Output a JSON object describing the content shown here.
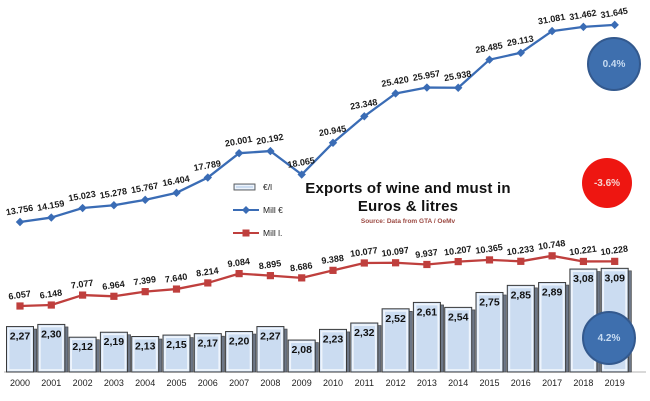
{
  "title": {
    "line1": "Exports of wine and must in",
    "line2": "Euros & litres",
    "source": "Source: Data from GTA / OeMv"
  },
  "colors": {
    "mill_eur_line": "#3a6cb5",
    "mill_litres_line": "#bf3f3d",
    "bar_fill": "#cbdcf1",
    "badge_blue": "#3e6fae",
    "badge_red": "#ee1611"
  },
  "chart_data": {
    "type": "combo",
    "title": "Exports of wine and must in Euros & litres",
    "source_note": "Source: Data from GTA / OeMv",
    "grid": "off",
    "legend_position": "center-left",
    "categories": [
      "2000",
      "2001",
      "2002",
      "2003",
      "2004",
      "2005",
      "2006",
      "2007",
      "2008",
      "2009",
      "2010",
      "2011",
      "2012",
      "2013",
      "2014",
      "2015",
      "2016",
      "2017",
      "2018",
      "2019"
    ],
    "series": [
      {
        "id": "eur-per-l",
        "name": "€/l",
        "type": "bar",
        "color": "#cbdcf1",
        "values": [
          2.27,
          2.3,
          2.12,
          2.19,
          2.13,
          2.15,
          2.17,
          2.2,
          2.27,
          2.08,
          2.23,
          2.32,
          2.52,
          2.61,
          2.54,
          2.75,
          2.85,
          2.89,
          3.08,
          3.09
        ],
        "labels": [
          "2,27",
          "2,30",
          "2,12",
          "2,19",
          "2,13",
          "2,15",
          "2,17",
          "2,20",
          "2,27",
          "2,08",
          "2,23",
          "2,32",
          "2,52",
          "2,61",
          "2,54",
          "2,75",
          "2,85",
          "2,89",
          "3,08",
          "3,09"
        ]
      },
      {
        "id": "mill-eur",
        "name": "Mill €",
        "type": "line",
        "marker": "diamond",
        "color": "#3a6cb5",
        "values": [
          13.756,
          14.159,
          15.023,
          15.278,
          15.767,
          16.404,
          17.789,
          20.001,
          20.192,
          18.065,
          20.945,
          23.348,
          25.42,
          25.957,
          25.938,
          28.485,
          29.113,
          31.081,
          31.462,
          31.645
        ],
        "labels": [
          "13.756",
          "14.159",
          "15.023",
          "15.278",
          "15.767",
          "16.404",
          "17.789",
          "20.001",
          "20.192",
          "18.065",
          "20.945",
          "23.348",
          "25.420",
          "25.957",
          "25.938",
          "28.485",
          "29.113",
          "31.081",
          "31.462",
          "31.645"
        ]
      },
      {
        "id": "mill-litres",
        "name": "Mill l.",
        "type": "line",
        "marker": "square",
        "color": "#bf3f3d",
        "values": [
          6.057,
          6.148,
          7.077,
          6.964,
          7.399,
          7.64,
          8.214,
          9.084,
          8.895,
          8.686,
          9.388,
          10.077,
          10.097,
          9.937,
          10.207,
          10.365,
          10.233,
          10.748,
          10.221,
          10.228
        ],
        "labels": [
          "6.057",
          "6.148",
          "7.077",
          "6.964",
          "7.399",
          "7.640",
          "8.214",
          "9.084",
          "8.895",
          "8.686",
          "9.388",
          "10.077",
          "10.097",
          "9.937",
          "10.207",
          "10.365",
          "10.233",
          "10.748",
          "10.221",
          "10.228"
        ]
      }
    ],
    "annotations": [
      {
        "text": "0.4%",
        "color": "#3e6fae",
        "near": "Mill € 2019"
      },
      {
        "text": "-3.6%",
        "color": "#ee1611",
        "near": "Mill l. 2019"
      },
      {
        "text": "4.2%",
        "color": "#3e6fae",
        "near": "€/l 2019"
      }
    ]
  }
}
